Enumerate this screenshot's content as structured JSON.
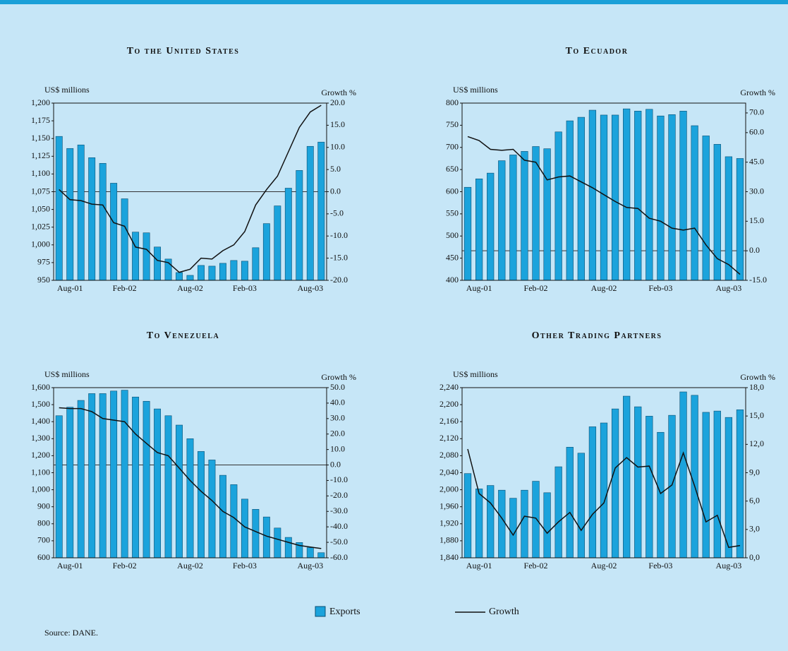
{
  "chart_data": [
    {
      "type": "bar",
      "title": "To the United States",
      "y_label": "US$ millions",
      "y2_label": "Growth %",
      "categories": [
        null,
        "Aug-01",
        null,
        null,
        null,
        null,
        "Feb-02",
        null,
        null,
        null,
        null,
        null,
        "Aug-02",
        null,
        null,
        null,
        null,
        "Feb-03",
        null,
        null,
        null,
        null,
        null,
        "Aug-03",
        null
      ],
      "series": [
        {
          "values": [
            1153,
            1136,
            1141,
            1123,
            1115,
            1087,
            1065,
            1018,
            1017,
            997,
            980,
            961,
            957,
            971,
            970,
            974,
            978,
            977,
            996,
            1030,
            1055,
            1080,
            1105,
            1139,
            1145
          ]
        },
        {
          "axis": "y2",
          "values": [
            0.5,
            -1.8,
            -2,
            -2.8,
            -3,
            -7,
            -7.8,
            -12.5,
            -13,
            -15.5,
            -16,
            -18.2,
            -17.5,
            -15,
            -15.2,
            -13.3,
            -12,
            -9,
            -3,
            0.5,
            3.5,
            9,
            14.5,
            18,
            19.5
          ]
        }
      ],
      "ylim": [
        950,
        1200
      ],
      "yticks": [
        950,
        975,
        {
          "value": 1000,
          "label": "1,000"
        },
        {
          "value": 1025,
          "label": "1,025"
        },
        {
          "value": 1050,
          "label": "1,050"
        },
        {
          "value": 1075,
          "label": "1,075"
        },
        {
          "value": 1100,
          "label": "1,100"
        },
        {
          "value": 1125,
          "label": "1,125"
        },
        {
          "value": 1150,
          "label": "1,150"
        },
        {
          "value": 1175,
          "label": "1,175"
        },
        {
          "value": 1200,
          "label": "1,200"
        }
      ],
      "y2lim": [
        -20,
        20
      ],
      "y2ticks": [
        {
          "value": -20,
          "label": "-20.0"
        },
        {
          "value": -15,
          "label": "-15.0"
        },
        {
          "value": -10,
          "label": "-10.0"
        },
        {
          "value": -5,
          "label": "-5.0"
        },
        {
          "value": 0,
          "label": "0.0"
        },
        {
          "value": 5,
          "label": "5.0"
        },
        {
          "value": 10,
          "label": "10.0"
        },
        {
          "value": 15,
          "label": "15.0"
        },
        {
          "value": 20,
          "label": "20.0"
        }
      ]
    },
    {
      "type": "bar",
      "title": "To Ecuador",
      "y_label": "US$ millions",
      "y2_label": "Growth %",
      "categories": [
        null,
        "Aug-01",
        null,
        null,
        null,
        null,
        "Feb-02",
        null,
        null,
        null,
        null,
        null,
        "Aug-02",
        null,
        null,
        null,
        null,
        "Feb-03",
        null,
        null,
        null,
        null,
        null,
        "Aug-03",
        null
      ],
      "series": [
        {
          "values": [
            610,
            629,
            642,
            670,
            683,
            691,
            702,
            697,
            735,
            760,
            768,
            784,
            773,
            773,
            787,
            782,
            786,
            771,
            774,
            782,
            749,
            726,
            707,
            679,
            675
          ]
        },
        {
          "axis": "y2",
          "values": [
            58,
            56,
            51.5,
            51,
            51.5,
            46,
            45,
            36,
            37.5,
            38,
            35,
            32,
            28.5,
            25,
            22,
            21.5,
            16.5,
            15,
            11.5,
            10.5,
            11.5,
            3,
            -4,
            -7,
            -12
          ]
        }
      ],
      "ylim": [
        400,
        800
      ],
      "yticks": [
        400,
        450,
        500,
        550,
        600,
        650,
        700,
        750,
        800
      ],
      "y2lim": [
        -15,
        75
      ],
      "y2ticks": [
        {
          "value": -15,
          "label": "-15.0"
        },
        {
          "value": 0,
          "label": "0.0"
        },
        {
          "value": 15,
          "label": "15.0"
        },
        {
          "value": 30,
          "label": "30.0"
        },
        {
          "value": 45,
          "label": "45.0"
        },
        {
          "value": 60,
          "label": "60.0"
        },
        {
          "value": 70,
          "label": "70.0"
        }
      ]
    },
    {
      "type": "bar",
      "title": "To Venezuela",
      "y_label": "US$ millions",
      "y2_label": "Growth %",
      "categories": [
        null,
        "Aug-01",
        null,
        null,
        null,
        null,
        "Feb-02",
        null,
        null,
        null,
        null,
        null,
        "Aug-02",
        null,
        null,
        null,
        null,
        "Feb-03",
        null,
        null,
        null,
        null,
        null,
        "Aug-03",
        null
      ],
      "series": [
        {
          "values": [
            1435,
            1485,
            1525,
            1565,
            1565,
            1580,
            1585,
            1545,
            1520,
            1475,
            1435,
            1380,
            1300,
            1225,
            1175,
            1085,
            1030,
            945,
            885,
            840,
            775,
            720,
            690,
            660,
            630
          ]
        },
        {
          "axis": "y2",
          "values": [
            37,
            36.5,
            36.5,
            34.5,
            30,
            29,
            28,
            20,
            14,
            8,
            6,
            -2,
            -10,
            -17,
            -23,
            -30,
            -34,
            -40,
            -43,
            -46,
            -48,
            -50,
            -52,
            -53,
            -54
          ]
        }
      ],
      "ylim": [
        600,
        1600
      ],
      "yticks": [
        600,
        700,
        800,
        900,
        {
          "value": 1000,
          "label": "1,000"
        },
        {
          "value": 1100,
          "label": "1,100"
        },
        {
          "value": 1200,
          "label": "1,200"
        },
        {
          "value": 1300,
          "label": "1,300"
        },
        {
          "value": 1400,
          "label": "1,400"
        },
        {
          "value": 1500,
          "label": "1,500"
        },
        {
          "value": 1600,
          "label": "1,600"
        }
      ],
      "y2lim": [
        -60,
        50
      ],
      "y2ticks": [
        {
          "value": -60,
          "label": "-60.0"
        },
        {
          "value": -50,
          "label": "-50.0"
        },
        {
          "value": -40,
          "label": "-40.0"
        },
        {
          "value": -30,
          "label": "-30.0"
        },
        {
          "value": -20,
          "label": "-20.0"
        },
        {
          "value": -10,
          "label": "-10.0"
        },
        {
          "value": 0,
          "label": "0.0"
        },
        {
          "value": 10,
          "label": "10.0"
        },
        {
          "value": 20,
          "label": "20.0"
        },
        {
          "value": 30,
          "label": "30.0"
        },
        {
          "value": 40,
          "label": "40.0"
        },
        {
          "value": 50,
          "label": "50.0"
        }
      ]
    },
    {
      "type": "bar",
      "title": "Other Trading Partners",
      "y_label": "US$ millions",
      "y2_label": "Growth %",
      "categories": [
        null,
        "Aug-01",
        null,
        null,
        null,
        null,
        "Feb-02",
        null,
        null,
        null,
        null,
        null,
        "Aug-02",
        null,
        null,
        null,
        null,
        "Feb-03",
        null,
        null,
        null,
        null,
        null,
        "Aug-03",
        null
      ],
      "series": [
        {
          "values": [
            2038,
            2002,
            2010,
            1999,
            1980,
            1999,
            2020,
            1993,
            2054,
            2100,
            2086,
            2148,
            2157,
            2190,
            2220,
            2195,
            2173,
            2135,
            2175,
            2230,
            2222,
            2182,
            2185,
            2170,
            2188
          ]
        },
        {
          "axis": "y2",
          "values": [
            11.5,
            6.8,
            5.8,
            4.2,
            2.4,
            4.4,
            4.2,
            2.6,
            3.8,
            4.8,
            2.9,
            4.6,
            5.8,
            9.5,
            10.6,
            9.6,
            9.7,
            6.8,
            7.7,
            11.1,
            7.6,
            3.8,
            4.5,
            1.1,
            1.3
          ]
        }
      ],
      "ylim": [
        1840,
        2240
      ],
      "yticks": [
        {
          "value": 1840,
          "label": "1,840"
        },
        {
          "value": 1880,
          "label": "1,880"
        },
        {
          "value": 1920,
          "label": "1,920"
        },
        {
          "value": 1960,
          "label": "1,960"
        },
        {
          "value": 2000,
          "label": "2,000"
        },
        {
          "value": 2040,
          "label": "2,040"
        },
        {
          "value": 2080,
          "label": "2,080"
        },
        {
          "value": 2120,
          "label": "2,120"
        },
        {
          "value": 2160,
          "label": "2,160"
        },
        {
          "value": 2200,
          "label": "2,200"
        },
        {
          "value": 2240,
          "label": "2,240"
        }
      ],
      "y2lim": [
        0,
        18
      ],
      "y2ticks": [
        {
          "value": 0,
          "label": "0,0"
        },
        {
          "value": 3,
          "label": "3,0"
        },
        {
          "value": 6,
          "label": "6,0"
        },
        {
          "value": 9,
          "label": "9,0"
        },
        {
          "value": 12,
          "label": "12,0"
        },
        {
          "value": 15,
          "label": "15,0"
        },
        {
          "value": 18,
          "label": "18,0"
        }
      ]
    }
  ],
  "legend_items": [
    {
      "name": "Exports",
      "color": "#1ba3dc"
    },
    {
      "name": "Growth",
      "color": "#111111"
    }
  ],
  "source": "Source: DANE."
}
